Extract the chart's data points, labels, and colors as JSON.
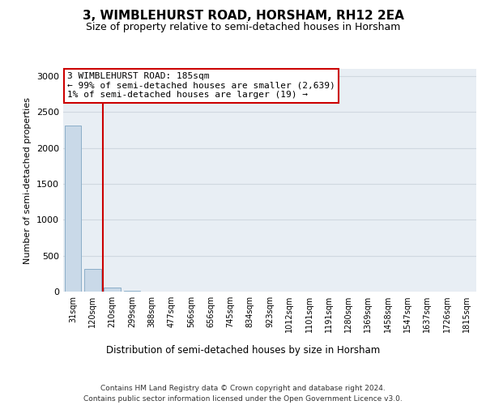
{
  "title": "3, WIMBLEHURST ROAD, HORSHAM, RH12 2EA",
  "subtitle": "Size of property relative to semi-detached houses in Horsham",
  "xlabel_bottom": "Distribution of semi-detached houses by size in Horsham",
  "ylabel": "Number of semi-detached properties",
  "footer_line1": "Contains HM Land Registry data © Crown copyright and database right 2024.",
  "footer_line2": "Contains public sector information licensed under the Open Government Licence v3.0.",
  "annotation_line1": "3 WIMBLEHURST ROAD: 185sqm",
  "annotation_line2": "← 99% of semi-detached houses are smaller (2,639)",
  "annotation_line3": "1% of semi-detached houses are larger (19) →",
  "bar_color": "#c9d9e8",
  "bar_edge_color": "#8baec8",
  "property_line_color": "#cc0000",
  "annotation_box_color": "#cc0000",
  "categories": [
    "31sqm",
    "120sqm",
    "210sqm",
    "299sqm",
    "388sqm",
    "477sqm",
    "566sqm",
    "656sqm",
    "745sqm",
    "834sqm",
    "923sqm",
    "1012sqm",
    "1101sqm",
    "1191sqm",
    "1280sqm",
    "1369sqm",
    "1458sqm",
    "1547sqm",
    "1637sqm",
    "1726sqm",
    "1815sqm"
  ],
  "values": [
    2310,
    320,
    55,
    8,
    2,
    1,
    0,
    0,
    0,
    0,
    0,
    0,
    0,
    0,
    0,
    0,
    0,
    0,
    0,
    0,
    0
  ],
  "ylim": [
    0,
    3100
  ],
  "yticks": [
    0,
    500,
    1000,
    1500,
    2000,
    2500,
    3000
  ],
  "property_line_x": 1.5,
  "grid_color": "#d0d8e0",
  "bg_color": "#e8eef4",
  "title_fontsize": 11,
  "subtitle_fontsize": 9,
  "ylabel_fontsize": 8,
  "xlabel_fontsize": 8.5,
  "tick_fontsize": 8,
  "xtick_fontsize": 7,
  "annotation_fontsize": 8,
  "footer_fontsize": 6.5
}
